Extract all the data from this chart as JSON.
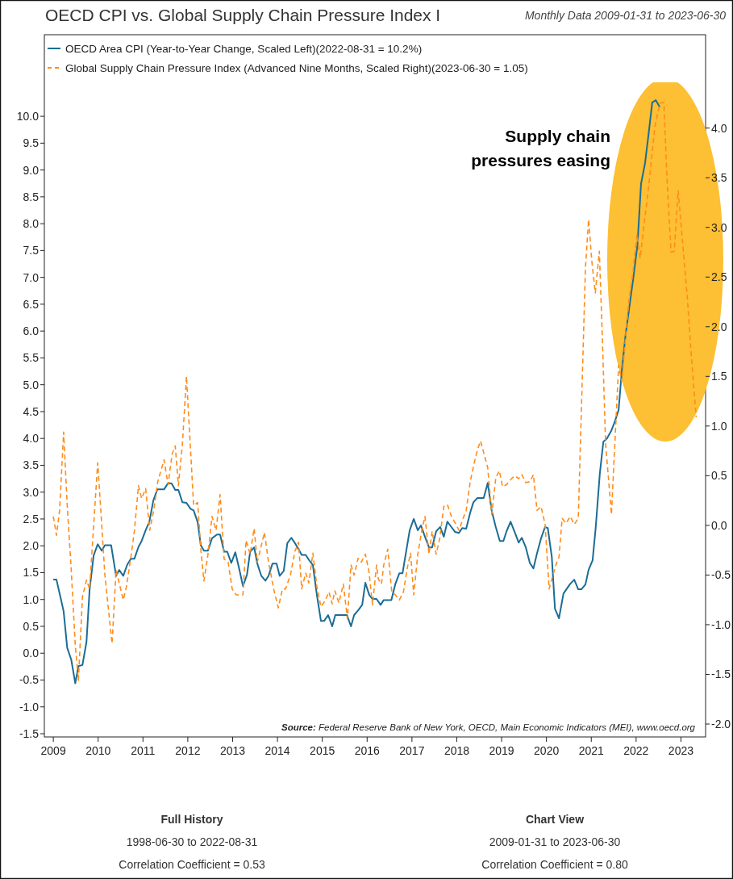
{
  "chart_data": {
    "type": "line",
    "title": "OECD CPI vs. Global Supply Chain Pressure Index I",
    "subtitle": "Monthly Data 2009-01-31 to 2023-06-30",
    "legend": "top left",
    "series": [
      {
        "name": "OECD Area CPI (Year-to-Year Change, Scaled Left)(2022-08-31 = 10.2%)",
        "color": "#1b6d96",
        "line_style": "solid",
        "x": [
          2009.0,
          2009.07,
          2009.16,
          2009.23,
          2009.31,
          2009.4,
          2009.49,
          2009.56,
          2009.65,
          2009.74,
          2009.81,
          2009.9,
          2009.99,
          2010.08,
          2010.15,
          2010.29,
          2010.4,
          2010.47,
          2010.56,
          2010.65,
          2010.73,
          2010.81,
          2010.9,
          2010.97,
          2011.06,
          2011.14,
          2011.23,
          2011.32,
          2011.47,
          2011.56,
          2011.64,
          2011.72,
          2011.79,
          2011.88,
          2011.97,
          2012.06,
          2012.13,
          2012.22,
          2012.29,
          2012.36,
          2012.45,
          2012.54,
          2012.65,
          2012.72,
          2012.81,
          2012.88,
          2012.97,
          2013.06,
          2013.15,
          2013.23,
          2013.32,
          2013.39,
          2013.48,
          2013.55,
          2013.64,
          2013.73,
          2013.8,
          2013.89,
          2013.98,
          2014.05,
          2014.14,
          2014.22,
          2014.31,
          2014.39,
          2014.47,
          2014.54,
          2014.63,
          2014.7,
          2014.79,
          2014.88,
          2014.97,
          2015.04,
          2015.13,
          2015.22,
          2015.29,
          2015.55,
          2015.64,
          2015.71,
          2015.8,
          2015.89,
          2015.96,
          2016.05,
          2016.12,
          2016.21,
          2016.3,
          2016.37,
          2016.54,
          2016.63,
          2016.72,
          2016.79,
          2016.88,
          2016.95,
          2017.04,
          2017.13,
          2017.2,
          2017.29,
          2017.38,
          2017.45,
          2017.54,
          2017.63,
          2017.71,
          2017.79,
          2017.87,
          2017.96,
          2018.05,
          2018.12,
          2018.21,
          2018.3,
          2018.37,
          2018.46,
          2018.6,
          2018.69,
          2018.78,
          2018.87,
          2018.96,
          2019.04,
          2019.11,
          2019.2,
          2019.29,
          2019.38,
          2019.45,
          2019.54,
          2019.63,
          2019.71,
          2019.79,
          2019.88,
          2019.97,
          2020.03,
          2020.12,
          2020.19,
          2020.28,
          2020.38,
          2020.47,
          2020.53,
          2020.62,
          2020.71,
          2020.78,
          2020.87,
          2020.94,
          2021.03,
          2021.1,
          2021.19,
          2021.27,
          2021.35,
          2021.45,
          2021.52,
          2021.61,
          2021.68,
          2021.76,
          2021.85,
          2021.94,
          2022.03,
          2022.11,
          2022.2,
          2022.27,
          2022.36,
          2022.44,
          2022.53
        ],
        "values": [
          1.37,
          1.37,
          1.04,
          0.78,
          0.1,
          -0.12,
          -0.56,
          -0.24,
          -0.22,
          0.21,
          1.19,
          1.82,
          2.03,
          1.91,
          2.01,
          2.01,
          1.44,
          1.55,
          1.44,
          1.65,
          1.76,
          1.76,
          1.98,
          2.09,
          2.29,
          2.44,
          2.84,
          3.05,
          3.05,
          3.17,
          3.16,
          3.04,
          3.04,
          2.81,
          2.8,
          2.69,
          2.66,
          2.44,
          2.01,
          1.91,
          1.91,
          2.14,
          2.21,
          2.21,
          1.89,
          1.89,
          1.68,
          1.88,
          1.56,
          1.25,
          1.46,
          1.89,
          1.97,
          1.67,
          1.44,
          1.35,
          1.44,
          1.67,
          1.67,
          1.44,
          1.53,
          2.05,
          2.15,
          2.05,
          1.94,
          1.83,
          1.83,
          1.74,
          1.64,
          1.08,
          0.6,
          0.6,
          0.71,
          0.5,
          0.71,
          0.71,
          0.5,
          0.71,
          0.8,
          0.9,
          1.31,
          1.08,
          1.01,
          1.01,
          0.9,
          0.99,
          0.99,
          1.29,
          1.49,
          1.49,
          1.94,
          2.29,
          2.5,
          2.29,
          2.38,
          2.17,
          1.97,
          1.97,
          2.27,
          2.35,
          2.17,
          2.45,
          2.36,
          2.26,
          2.24,
          2.33,
          2.32,
          2.62,
          2.81,
          2.89,
          2.89,
          3.17,
          2.65,
          2.35,
          2.09,
          2.09,
          2.27,
          2.45,
          2.26,
          2.06,
          2.15,
          1.97,
          1.68,
          1.58,
          1.86,
          2.14,
          2.35,
          2.33,
          1.79,
          0.83,
          0.65,
          1.11,
          1.22,
          1.29,
          1.37,
          1.19,
          1.19,
          1.28,
          1.55,
          1.73,
          2.35,
          3.34,
          3.94,
          4.0,
          4.15,
          4.3,
          4.53,
          5.25,
          5.89,
          6.45,
          7.0,
          7.6,
          8.74,
          9.13,
          9.61,
          10.26,
          10.3,
          10.17
        ]
      },
      {
        "name": "Global Supply Chain Pressure Index (Advanced Nine Months, Scaled Right)(2023-06-30 = 1.05)",
        "color": "#ff8c1a",
        "line_style": "dashed",
        "axis": "y2",
        "x": [
          2009.0,
          2009.07,
          2009.14,
          2009.23,
          2009.31,
          2009.4,
          2009.49,
          2009.56,
          2009.65,
          2009.74,
          2009.81,
          2009.9,
          2009.99,
          2010.06,
          2010.15,
          2010.24,
          2010.31,
          2010.4,
          2010.56,
          2010.63,
          2010.74,
          2010.81,
          2010.9,
          2010.97,
          2011.06,
          2011.15,
          2011.24,
          2011.33,
          2011.47,
          2011.56,
          2011.65,
          2011.72,
          2011.79,
          2011.88,
          2011.97,
          2012.13,
          2012.22,
          2012.29,
          2012.36,
          2012.45,
          2012.54,
          2012.63,
          2012.72,
          2012.81,
          2012.9,
          2012.99,
          2013.08,
          2013.23,
          2013.3,
          2013.39,
          2013.48,
          2013.55,
          2013.71,
          2013.8,
          2013.93,
          2014.02,
          2014.11,
          2014.18,
          2014.29,
          2014.39,
          2014.47,
          2014.54,
          2014.63,
          2014.7,
          2014.79,
          2014.88,
          2014.97,
          2015.06,
          2015.15,
          2015.22,
          2015.28,
          2015.37,
          2015.47,
          2015.56,
          2015.64,
          2015.71,
          2015.8,
          2015.87,
          2015.96,
          2016.04,
          2016.12,
          2016.21,
          2016.25,
          2016.32,
          2016.37,
          2016.46,
          2016.55,
          2016.63,
          2016.72,
          2016.81,
          2016.9,
          2016.97,
          2017.04,
          2017.13,
          2017.22,
          2017.29,
          2017.38,
          2017.45,
          2017.54,
          2017.62,
          2017.71,
          2017.79,
          2017.88,
          2017.97,
          2018.05,
          2018.14,
          2018.21,
          2018.3,
          2018.39,
          2018.46,
          2018.53,
          2018.62,
          2018.69,
          2018.78,
          2018.87,
          2018.95,
          2019.02,
          2019.11,
          2019.2,
          2019.29,
          2019.38,
          2019.45,
          2019.54,
          2019.63,
          2019.71,
          2019.79,
          2019.88,
          2019.97,
          2020.06,
          2020.12,
          2020.21,
          2020.28,
          2020.35,
          2020.44,
          2020.53,
          2020.62,
          2020.71,
          2020.87,
          2020.94,
          2021.01,
          2021.09,
          2021.18,
          2021.25,
          2021.32,
          2021.45,
          2021.61,
          2021.68,
          2021.75,
          2021.84,
          2021.93,
          2022.02,
          2022.09,
          2022.18,
          2022.27,
          2022.42,
          2022.53,
          2022.62,
          2022.69,
          2022.78,
          2022.85,
          2022.94,
          2023.01,
          2023.14,
          2023.23,
          2023.34
        ],
        "values": [
          0.09,
          -0.1,
          0.15,
          0.94,
          0.2,
          -0.45,
          -1.21,
          -1.56,
          -0.72,
          -0.55,
          -0.64,
          0.0,
          0.63,
          0.15,
          -0.5,
          -0.89,
          -1.19,
          -0.45,
          -0.75,
          -0.62,
          -0.29,
          -0.05,
          0.4,
          0.27,
          0.37,
          -0.05,
          0.15,
          0.44,
          0.66,
          0.41,
          0.72,
          0.8,
          0.4,
          0.82,
          1.5,
          0.2,
          0.23,
          -0.24,
          -0.56,
          -0.29,
          0.09,
          -0.05,
          0.31,
          -0.34,
          -0.37,
          -0.64,
          -0.7,
          -0.7,
          -0.15,
          -0.29,
          -0.03,
          -0.37,
          -0.07,
          -0.37,
          -0.67,
          -0.83,
          -0.64,
          -0.64,
          -0.5,
          -0.26,
          -0.17,
          -0.64,
          -0.48,
          -0.58,
          -0.28,
          -0.62,
          -0.82,
          -0.76,
          -0.67,
          -0.79,
          -0.66,
          -0.78,
          -0.59,
          -0.94,
          -0.4,
          -0.5,
          -0.33,
          -0.37,
          -0.29,
          -0.46,
          -0.8,
          -0.4,
          -0.54,
          -0.59,
          -0.4,
          -0.24,
          -0.67,
          -0.7,
          -0.75,
          -0.67,
          -0.42,
          -0.28,
          -0.7,
          -0.29,
          -0.05,
          0.09,
          -0.29,
          -0.06,
          -0.29,
          -0.13,
          0.19,
          0.21,
          0.09,
          0.02,
          -0.05,
          0.07,
          0.15,
          0.44,
          0.63,
          0.76,
          0.85,
          0.7,
          0.58,
          0.11,
          0.48,
          0.55,
          0.39,
          0.41,
          0.46,
          0.5,
          0.47,
          0.51,
          0.43,
          0.44,
          0.51,
          0.15,
          0.19,
          0.01,
          -0.64,
          -0.54,
          -0.4,
          -0.32,
          0.07,
          0.02,
          0.09,
          0.01,
          0.07,
          2.59,
          3.08,
          2.67,
          2.34,
          2.76,
          1.85,
          0.82,
          0.11,
          1.61,
          1.45,
          1.82,
          2.26,
          2.55,
          2.93,
          2.69,
          3.04,
          3.37,
          4.02,
          4.25,
          4.26,
          3.48,
          2.75,
          2.76,
          3.37,
          2.99,
          2.31,
          1.72,
          1.09
        ]
      }
    ],
    "xlim": [
      2008.8,
      2023.55
    ],
    "xticks": [
      2009,
      2010,
      2011,
      2012,
      2013,
      2014,
      2015,
      2016,
      2017,
      2018,
      2019,
      2020,
      2021,
      2022,
      2023
    ],
    "ylim": [
      -1.56,
      11.52
    ],
    "yticks": [
      {
        "value": -1.5,
        "label": "-1.5"
      },
      {
        "value": -1,
        "label": "-1.0"
      },
      {
        "value": -0.5,
        "label": "-0.5"
      },
      {
        "value": 0,
        "label": "0.0"
      },
      {
        "value": 0.5,
        "label": "0.5"
      },
      {
        "value": 1,
        "label": "1.0"
      },
      {
        "value": 1.5,
        "label": "1.5"
      },
      {
        "value": 2,
        "label": "2.0"
      },
      {
        "value": 2.5,
        "label": "2.5"
      },
      {
        "value": 3,
        "label": "3.0"
      },
      {
        "value": 3.5,
        "label": "3.5"
      },
      {
        "value": 4,
        "label": "4.0"
      },
      {
        "value": 4.5,
        "label": "4.5"
      },
      {
        "value": 5,
        "label": "5.0"
      },
      {
        "value": 5.5,
        "label": "5.5"
      },
      {
        "value": 6,
        "label": "6.0"
      },
      {
        "value": 6.5,
        "label": "6.5"
      },
      {
        "value": 7,
        "label": "7.0"
      },
      {
        "value": 7.5,
        "label": "7.5"
      },
      {
        "value": 8,
        "label": "8.0"
      },
      {
        "value": 8.5,
        "label": "8.5"
      },
      {
        "value": 9,
        "label": "9.0"
      },
      {
        "value": 9.5,
        "label": "9.5"
      },
      {
        "value": 10,
        "label": "10.0"
      }
    ],
    "y2lim": [
      -2.13,
      4.94
    ],
    "y2ticks": [
      {
        "value": -2,
        "label": "-2.0"
      },
      {
        "value": -1.5,
        "label": "-1.5"
      },
      {
        "value": -1,
        "label": "-1.0"
      },
      {
        "value": -0.5,
        "label": "-0.5"
      },
      {
        "value": 0,
        "label": "0.0"
      },
      {
        "value": 0.5,
        "label": "0.5"
      },
      {
        "value": 1,
        "label": "1.0"
      },
      {
        "value": 1.5,
        "label": "1.5"
      },
      {
        "value": 2,
        "label": "2.0"
      },
      {
        "value": 2.5,
        "label": "2.5"
      },
      {
        "value": 3,
        "label": "3.0"
      },
      {
        "value": 3.5,
        "label": "3.5"
      },
      {
        "value": 4,
        "label": "4.0"
      }
    ],
    "annotations": [
      "Supply chain pressures easing",
      "Source:  Federal Reserve Bank of New York, OECD, Main Economic Indicators (MEI), www.oecd.org",
      "Full History",
      "1998-06-30 to 2022-08-31",
      "Correlation Coefficient = 0.53",
      "Chart View",
      "2009-01-31 to 2023-06-30",
      "Correlation Coefficient = 0.80"
    ]
  }
}
